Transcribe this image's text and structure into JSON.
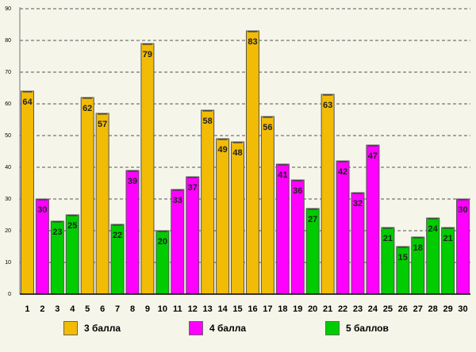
{
  "chart_data": {
    "type": "bar",
    "categories": [
      "1",
      "2",
      "3",
      "4",
      "5",
      "6",
      "7",
      "8",
      "9",
      "10",
      "11",
      "12",
      "13",
      "14",
      "15",
      "16",
      "17",
      "18",
      "19",
      "20",
      "21",
      "22",
      "23",
      "24",
      "25",
      "26",
      "27",
      "28",
      "29",
      "30"
    ],
    "values": [
      64,
      30,
      23,
      25,
      62,
      57,
      22,
      39,
      79,
      20,
      33,
      37,
      58,
      49,
      48,
      83,
      56,
      41,
      36,
      27,
      63,
      42,
      32,
      47,
      21,
      15,
      18,
      24,
      21,
      30
    ],
    "group": [
      0,
      1,
      2,
      2,
      0,
      0,
      2,
      1,
      0,
      2,
      1,
      1,
      0,
      0,
      0,
      0,
      0,
      1,
      1,
      2,
      0,
      1,
      1,
      1,
      2,
      2,
      2,
      2,
      2,
      1
    ],
    "series": [
      {
        "name": "3 балла",
        "color": "#f2bb05"
      },
      {
        "name": "4 балла",
        "color": "#ff00ff"
      },
      {
        "name": "5 баллов",
        "color": "#00cc00"
      }
    ],
    "yticks": [
      "0",
      "10",
      "20",
      "30",
      "40",
      "50",
      "60",
      "70",
      "80",
      "90"
    ],
    "ylim": [
      0,
      90
    ],
    "grid": true,
    "legend": "bottom",
    "title": "",
    "xlabel": "",
    "ylabel": ""
  }
}
